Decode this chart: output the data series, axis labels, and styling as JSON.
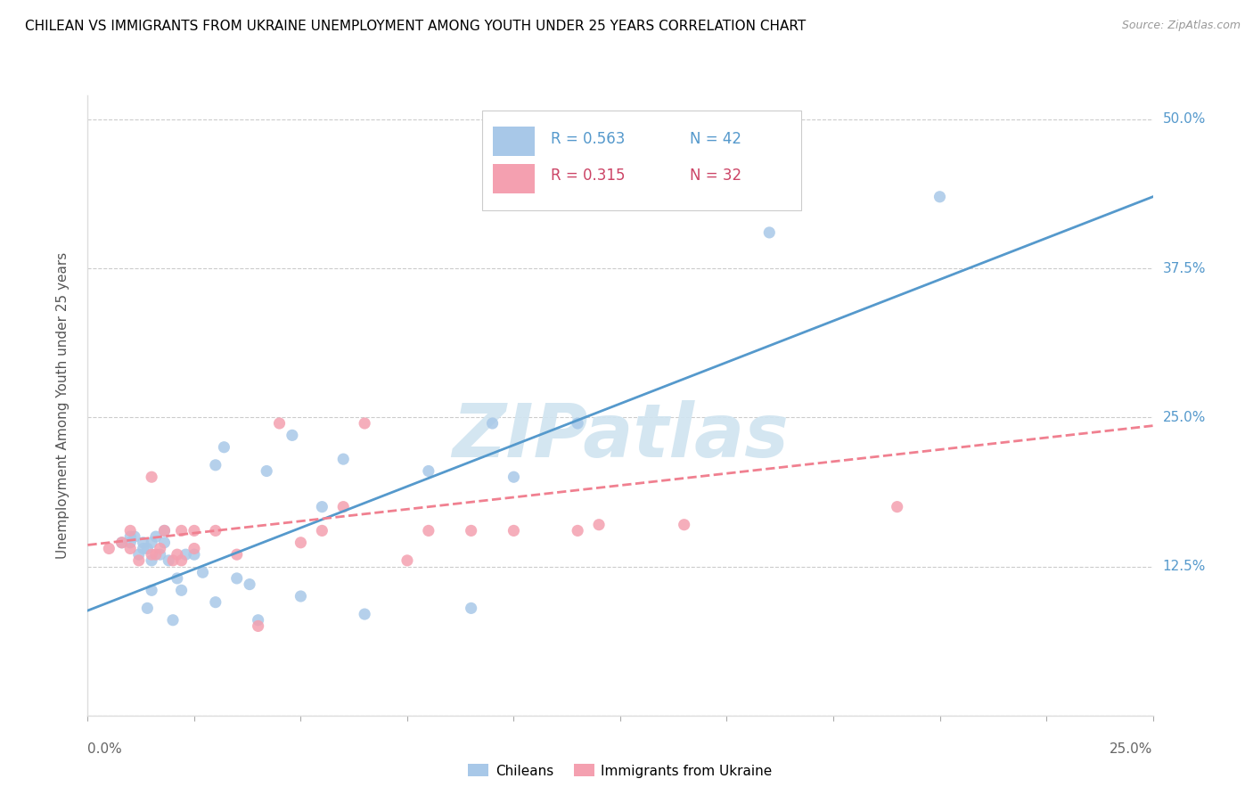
{
  "title": "CHILEAN VS IMMIGRANTS FROM UKRAINE UNEMPLOYMENT AMONG YOUTH UNDER 25 YEARS CORRELATION CHART",
  "source": "Source: ZipAtlas.com",
  "ylabel": "Unemployment Among Youth under 25 years",
  "xlim": [
    0.0,
    0.25
  ],
  "ylim": [
    0.0,
    0.52
  ],
  "yticks": [
    0.0,
    0.125,
    0.25,
    0.375,
    0.5
  ],
  "ytick_labels": [
    "",
    "12.5%",
    "25.0%",
    "37.5%",
    "50.0%"
  ],
  "legend_r1": "R = 0.563",
  "legend_n1": "N = 42",
  "legend_r2": "R = 0.315",
  "legend_n2": "N = 32",
  "blue_color": "#a8c8e8",
  "pink_color": "#f4a0b0",
  "blue_line_color": "#5599cc",
  "pink_line_color": "#f08090",
  "watermark": "ZIPatlas",
  "watermark_color": "#d0e4f0",
  "legend_label1": "Chileans",
  "legend_label2": "Immigrants from Ukraine",
  "blue_scatter_x": [
    0.008,
    0.01,
    0.01,
    0.011,
    0.012,
    0.013,
    0.013,
    0.014,
    0.014,
    0.015,
    0.015,
    0.015,
    0.016,
    0.017,
    0.018,
    0.018,
    0.019,
    0.02,
    0.021,
    0.022,
    0.023,
    0.025,
    0.027,
    0.03,
    0.03,
    0.032,
    0.035,
    0.038,
    0.04,
    0.042,
    0.048,
    0.05,
    0.055,
    0.06,
    0.065,
    0.08,
    0.09,
    0.095,
    0.1,
    0.115,
    0.16,
    0.2
  ],
  "blue_scatter_y": [
    0.145,
    0.145,
    0.15,
    0.15,
    0.135,
    0.14,
    0.145,
    0.09,
    0.14,
    0.105,
    0.13,
    0.145,
    0.15,
    0.135,
    0.145,
    0.155,
    0.13,
    0.08,
    0.115,
    0.105,
    0.135,
    0.135,
    0.12,
    0.095,
    0.21,
    0.225,
    0.115,
    0.11,
    0.08,
    0.205,
    0.235,
    0.1,
    0.175,
    0.215,
    0.085,
    0.205,
    0.09,
    0.245,
    0.2,
    0.245,
    0.405,
    0.435
  ],
  "pink_scatter_x": [
    0.005,
    0.008,
    0.01,
    0.01,
    0.012,
    0.015,
    0.015,
    0.016,
    0.017,
    0.018,
    0.02,
    0.021,
    0.022,
    0.022,
    0.025,
    0.025,
    0.03,
    0.035,
    0.04,
    0.045,
    0.05,
    0.055,
    0.06,
    0.065,
    0.075,
    0.08,
    0.09,
    0.1,
    0.115,
    0.12,
    0.14,
    0.19
  ],
  "pink_scatter_y": [
    0.14,
    0.145,
    0.14,
    0.155,
    0.13,
    0.135,
    0.2,
    0.135,
    0.14,
    0.155,
    0.13,
    0.135,
    0.13,
    0.155,
    0.14,
    0.155,
    0.155,
    0.135,
    0.075,
    0.245,
    0.145,
    0.155,
    0.175,
    0.245,
    0.13,
    0.155,
    0.155,
    0.155,
    0.155,
    0.16,
    0.16,
    0.175
  ],
  "blue_line_x": [
    0.0,
    0.25
  ],
  "blue_line_y": [
    0.088,
    0.435
  ],
  "pink_line_x": [
    0.0,
    0.25
  ],
  "pink_line_y": [
    0.143,
    0.243
  ]
}
